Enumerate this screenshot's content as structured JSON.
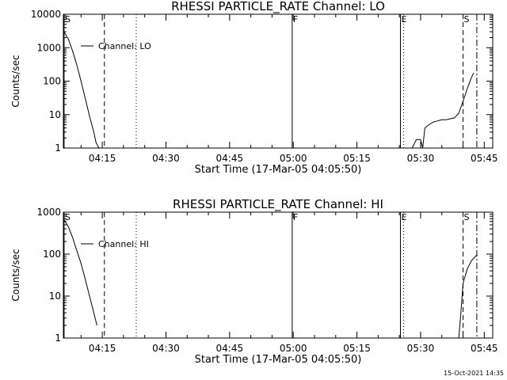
{
  "footer": {
    "timestamp": "15-Oct-2021 14:35"
  },
  "chart_data": [
    {
      "type": "line",
      "title": "RHESSI PARTICLE_RATE Channel: LO",
      "xlabel": "Start Time (17-Mar-05 04:05:50)",
      "ylabel": "Counts/sec",
      "yscale": "log",
      "ylim": [
        1,
        10000
      ],
      "xlim": [
        "04:05:50",
        "05:47:00"
      ],
      "xticks": [
        "04:15",
        "04:30",
        "04:45",
        "05:00",
        "05:15",
        "05:30",
        "05:45"
      ],
      "yticks": [
        "1",
        "10",
        "100",
        "1000",
        "10000"
      ],
      "grid": false,
      "legend": "top-left",
      "series": [
        {
          "name": "Channel: LO",
          "x": [
            "04:05:50",
            "04:07:00",
            "04:08:00",
            "04:09:00",
            "04:10:00",
            "04:11:00",
            "04:12:00",
            "04:13:00",
            "04:13:30",
            "04:14:00",
            "04:14:20",
            "05:28:00",
            "05:29:00",
            "05:30:00",
            "05:30:30",
            "05:31:00",
            "05:32:00",
            "05:33:00",
            "05:34:00",
            "05:35:00",
            "05:36:00",
            "05:37:00",
            "05:38:00",
            "05:39:00",
            "05:40:00",
            "05:41:00",
            "05:42:00",
            "05:42:30"
          ],
          "values": [
            3200,
            1800,
            800,
            300,
            100,
            30,
            9,
            3,
            1.5,
            1.1,
            1,
            1,
            1.8,
            1.8,
            1,
            4,
            5,
            6,
            6.5,
            7,
            7,
            7.5,
            8,
            11,
            25,
            60,
            130,
            175
          ]
        }
      ],
      "markers": [
        {
          "label": "S",
          "time": "04:06:00",
          "style": "solid"
        },
        {
          "label": "",
          "time": "04:15:30",
          "style": "dashed"
        },
        {
          "label": "",
          "time": "04:23:00",
          "style": "dotted"
        },
        {
          "label": "F",
          "time": "04:59:45",
          "style": "solid"
        },
        {
          "label": "E",
          "time": "05:25:15",
          "style": "solid"
        },
        {
          "label": "",
          "time": "05:26:00",
          "style": "dotted"
        },
        {
          "label": "S",
          "time": "05:40:00",
          "style": "dashed"
        },
        {
          "label": "",
          "time": "05:43:15",
          "style": "dashdot"
        }
      ]
    },
    {
      "type": "line",
      "title": "RHESSI PARTICLE_RATE Channel: HI",
      "xlabel": "Start Time (17-Mar-05 04:05:50)",
      "ylabel": "Counts/sec",
      "yscale": "log",
      "ylim": [
        1,
        1000
      ],
      "xlim": [
        "04:05:50",
        "05:47:00"
      ],
      "xticks": [
        "04:15",
        "04:30",
        "04:45",
        "05:00",
        "05:15",
        "05:30",
        "05:45"
      ],
      "yticks": [
        "1",
        "10",
        "100",
        "1000"
      ],
      "grid": false,
      "legend": "top-left",
      "series": [
        {
          "name": "Channel: HI",
          "x": [
            "04:05:50",
            "04:07:00",
            "04:08:00",
            "04:09:00",
            "04:10:00",
            "04:11:00",
            "04:12:00",
            "04:13:00",
            "04:13:45",
            "05:39:00",
            "05:39:30",
            "05:40:00",
            "05:41:00",
            "05:42:00",
            "05:43:00",
            "05:43:20"
          ],
          "values": [
            700,
            450,
            250,
            120,
            60,
            25,
            10,
            4,
            2,
            1,
            4,
            20,
            45,
            70,
            90,
            95
          ]
        }
      ],
      "markers": [
        {
          "label": "S",
          "time": "04:06:00",
          "style": "solid"
        },
        {
          "label": "",
          "time": "04:15:30",
          "style": "dashed"
        },
        {
          "label": "",
          "time": "04:23:00",
          "style": "dotted"
        },
        {
          "label": "F",
          "time": "04:59:45",
          "style": "solid"
        },
        {
          "label": "E",
          "time": "05:25:15",
          "style": "solid"
        },
        {
          "label": "",
          "time": "05:26:00",
          "style": "dotted"
        },
        {
          "label": "S",
          "time": "05:40:00",
          "style": "dashed"
        },
        {
          "label": "",
          "time": "05:43:15",
          "style": "dashdot"
        }
      ]
    }
  ]
}
